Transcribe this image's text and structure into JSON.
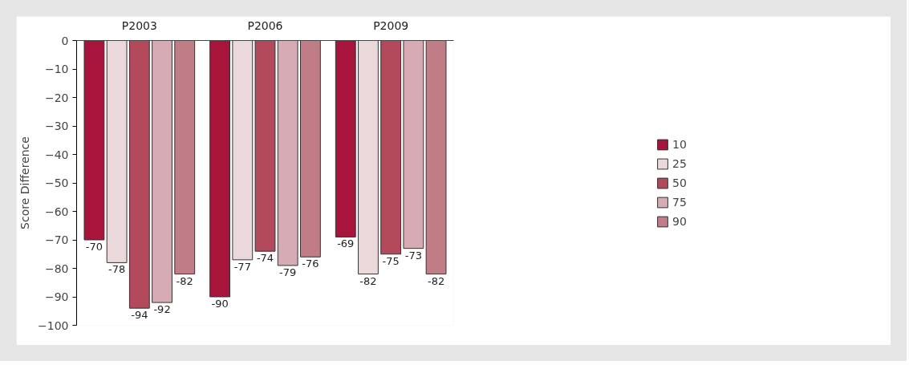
{
  "chart_data": {
    "type": "bar",
    "ylabel": "Score Difference",
    "categories": [
      "P2003",
      "P2006",
      "P2009"
    ],
    "series": [
      {
        "name": "10",
        "color": "#a8153c",
        "values": [
          -70,
          -90,
          -69
        ]
      },
      {
        "name": "25",
        "color": "#ead8db",
        "values": [
          -78,
          -77,
          -82
        ]
      },
      {
        "name": "50",
        "color": "#b24a5c",
        "values": [
          -94,
          -74,
          -75
        ]
      },
      {
        "name": "75",
        "color": "#d6abb3",
        "values": [
          -92,
          -79,
          -73
        ]
      },
      {
        "name": "90",
        "color": "#c07d88",
        "values": [
          -82,
          -76,
          -82
        ]
      }
    ],
    "ylim": [
      -100,
      0
    ],
    "yticks": [
      -100,
      -90,
      -80,
      -70,
      -60,
      -50,
      -40,
      -30,
      -20,
      -10,
      0
    ],
    "data_labels": true,
    "grid": false,
    "legend": "right"
  }
}
